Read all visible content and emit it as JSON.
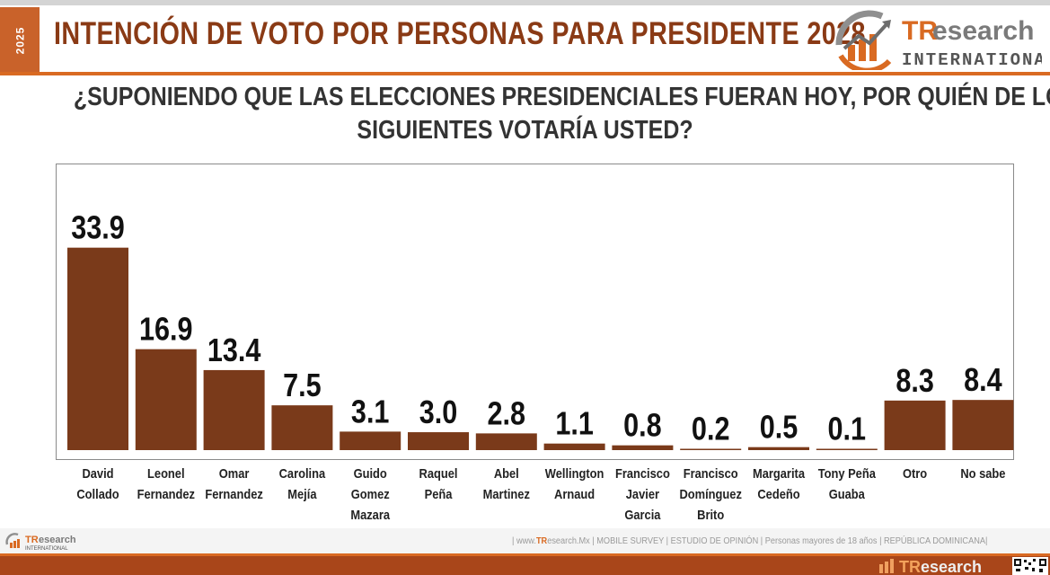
{
  "header": {
    "year": "2025",
    "title": "INTENCIÓN DE VOTO POR PERSONAS PARA PRESIDENTE 2028",
    "brand_tr": "TR",
    "brand_esearch": "esearch",
    "brand_sub": "INTERNATIONAL"
  },
  "question_lines": [
    "¿SUPONIENDO QUE LAS ELECCIONES PRESIDENCIALES FUERAN HOY, POR QUIÉN DE LOS",
    "SIGUIENTES VOTARÍA USTED?"
  ],
  "chart_data": {
    "type": "bar",
    "categories": [
      [
        "David",
        "Collado"
      ],
      [
        "Leonel",
        "Fernandez"
      ],
      [
        "Omar",
        "Fernandez"
      ],
      [
        "Carolina",
        "Mejía"
      ],
      [
        "Guido",
        "Gomez",
        "Mazara"
      ],
      [
        "Raquel",
        "Peña"
      ],
      [
        "Abel",
        "Martinez"
      ],
      [
        "Wellington",
        "Arnaud"
      ],
      [
        "Francisco",
        "Javier",
        "Garcia"
      ],
      [
        "Francisco",
        "Domínguez",
        "Brito"
      ],
      [
        "Margarita",
        "Cedeño"
      ],
      [
        "Tony Peña",
        "Guaba"
      ],
      [
        "Otro"
      ],
      [
        "No sabe"
      ]
    ],
    "values": [
      33.9,
      16.9,
      13.4,
      7.5,
      3.1,
      3.0,
      2.8,
      1.1,
      0.8,
      0.2,
      0.5,
      0.1,
      8.3,
      8.4
    ],
    "value_labels": [
      "33.9",
      "16.9",
      "13.4",
      "7.5",
      "3.1",
      "3.0",
      "2.8",
      "1.1",
      "0.8",
      "0.2",
      "0.5",
      "0.1",
      "8.3",
      "8.4"
    ],
    "bar_color": "#7a3a1a",
    "grid": false,
    "ylim": [
      0,
      34
    ]
  },
  "footer": {
    "note_prefix": "| www.",
    "note_brand": "TR",
    "note_rest": "esearch.Mx | MOBILE SURVEY | ESTUDIO DE OPINIÓN | Personas mayores de 18 años | REPÚBLICA DOMINICANA|",
    "small_logo_tr": "TR",
    "small_logo_esearch": "esearch",
    "small_logo_sub": "INTERNATIONAL",
    "bottom_logo_tr": "TR",
    "bottom_logo_esearch": "esearch"
  },
  "colors": {
    "accent": "#d96a22",
    "title": "#8a3a15",
    "bar": "#7a3a1a"
  },
  "icons": [
    "chart-growth-icon",
    "qr-code-icon"
  ]
}
